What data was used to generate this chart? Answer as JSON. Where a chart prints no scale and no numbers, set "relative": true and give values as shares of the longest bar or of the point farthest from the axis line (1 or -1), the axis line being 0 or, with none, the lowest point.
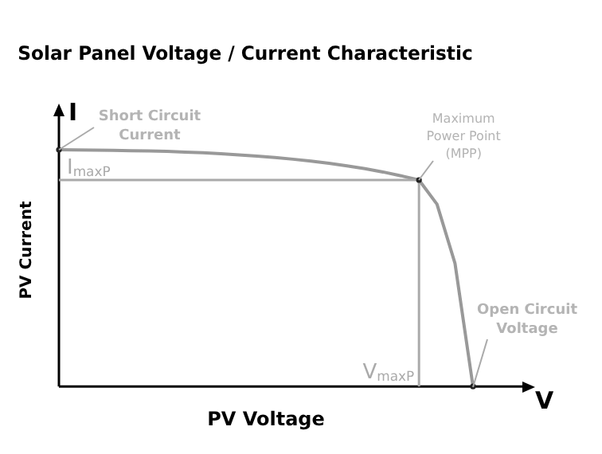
{
  "chart_data": {
    "type": "line",
    "title": "Solar Panel Voltage / Current Characteristic",
    "xlabel": "PV Voltage",
    "ylabel": "PV Current",
    "relative": true,
    "marker": "none",
    "line_style": "solid",
    "grid": false,
    "legend": false,
    "categories": [
      null,
      null,
      null,
      null,
      null,
      null,
      null,
      null,
      null,
      null,
      null,
      null,
      null,
      null,
      null,
      null,
      null,
      null,
      null,
      null,
      null,
      null,
      null,
      null
    ],
    "series": [
      {
        "color": "#999999",
        "values": [
          1,
          0.999,
          0.998,
          0.997,
          0.996,
          0.995,
          0.993,
          0.99,
          0.987,
          0.983,
          0.978,
          0.973,
          0.967,
          0.96,
          0.952,
          0.943,
          0.932,
          0.92,
          0.906,
          0.89,
          0.872,
          0.77,
          0.52,
          0
        ]
      }
    ],
    "ref_lines": [
      {
        "axis": "y",
        "value": 0.872,
        "label": "I$_{maxP}$",
        "color": "#aaaaaa"
      },
      {
        "axis": "x",
        "label": "V$_{maxP}$",
        "color": "#aaaaaa"
      }
    ],
    "annotations": [
      "I",
      "V",
      "Short Circuit Current",
      "Maximum Power Point (MPP)",
      "Open Circuit Voltage"
    ]
  }
}
